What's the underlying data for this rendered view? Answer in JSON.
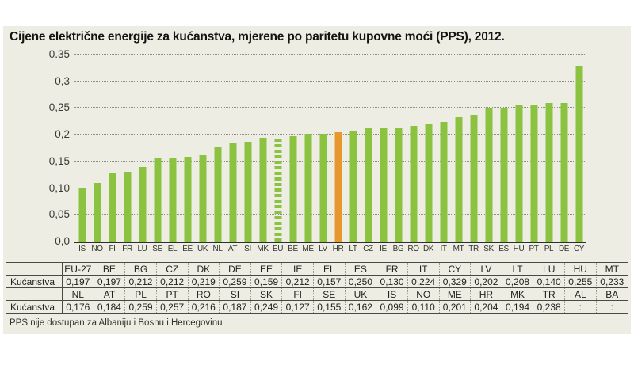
{
  "title": "Cijene električne energije za kućanstva, mjerene po paritetu kupovne moći (PPS), 2012.",
  "footnote": "PPS nije dostupan za Albaniju i Bosnu i Hercegovinu",
  "colors": {
    "panel_background": "#eeede4",
    "bar_green": "#8bc341",
    "bar_orange_highlight": "#e8972c",
    "gridline": "#8f8f85",
    "text": "#1d1d1b"
  },
  "chart_data": {
    "type": "bar",
    "title": "Cijene električne energije za kućanstva, mjerene po paritetu kupovne moći (PPS), 2012.",
    "xlabel": "",
    "ylabel": "",
    "ylim": [
      0,
      0.35
    ],
    "grid": "horizontal-dotted",
    "legend_position": "none",
    "yticks": [
      {
        "value": 0,
        "label": "0,0"
      },
      {
        "value": 0.05,
        "label": "0,05"
      },
      {
        "value": 0.1,
        "label": "0,10"
      },
      {
        "value": 0.15,
        "label": "0,15"
      },
      {
        "value": 0.2,
        "label": "0,2"
      },
      {
        "value": 0.25,
        "label": "0,25"
      },
      {
        "value": 0.3,
        "label": "0,3"
      },
      {
        "value": 0.35,
        "label": "0.35"
      }
    ],
    "bars": [
      {
        "code": "IS",
        "value": 0.099,
        "style": "green"
      },
      {
        "code": "NO",
        "value": 0.11,
        "style": "green"
      },
      {
        "code": "FI",
        "value": 0.127,
        "style": "green"
      },
      {
        "code": "FR",
        "value": 0.13,
        "style": "green"
      },
      {
        "code": "LU",
        "value": 0.14,
        "style": "green"
      },
      {
        "code": "SE",
        "value": 0.155,
        "style": "green"
      },
      {
        "code": "EL",
        "value": 0.157,
        "style": "green"
      },
      {
        "code": "EE",
        "value": 0.159,
        "style": "green"
      },
      {
        "code": "UK",
        "value": 0.162,
        "style": "green"
      },
      {
        "code": "NL",
        "value": 0.176,
        "style": "green"
      },
      {
        "code": "AT",
        "value": 0.184,
        "style": "green"
      },
      {
        "code": "SI",
        "value": 0.187,
        "style": "green"
      },
      {
        "code": "MK",
        "value": 0.194,
        "style": "green"
      },
      {
        "code": "EU",
        "value": 0.197,
        "style": "dashed"
      },
      {
        "code": "BE",
        "value": 0.197,
        "style": "green"
      },
      {
        "code": "ME",
        "value": 0.201,
        "style": "green"
      },
      {
        "code": "LV",
        "value": 0.202,
        "style": "green"
      },
      {
        "code": "HR",
        "value": 0.204,
        "style": "orange"
      },
      {
        "code": "LT",
        "value": 0.208,
        "style": "green"
      },
      {
        "code": "CZ",
        "value": 0.212,
        "style": "green"
      },
      {
        "code": "IE",
        "value": 0.212,
        "style": "green"
      },
      {
        "code": "BG",
        "value": 0.212,
        "style": "green"
      },
      {
        "code": "RO",
        "value": 0.216,
        "style": "green"
      },
      {
        "code": "DK",
        "value": 0.219,
        "style": "green"
      },
      {
        "code": "IT",
        "value": 0.224,
        "style": "green"
      },
      {
        "code": "MT",
        "value": 0.233,
        "style": "green"
      },
      {
        "code": "TR",
        "value": 0.238,
        "style": "green"
      },
      {
        "code": "SK",
        "value": 0.249,
        "style": "green"
      },
      {
        "code": "ES",
        "value": 0.25,
        "style": "green"
      },
      {
        "code": "HU",
        "value": 0.255,
        "style": "green"
      },
      {
        "code": "PT",
        "value": 0.257,
        "style": "green"
      },
      {
        "code": "PL",
        "value": 0.259,
        "style": "green"
      },
      {
        "code": "DE",
        "value": 0.259,
        "style": "green"
      },
      {
        "code": "CY",
        "value": 0.329,
        "style": "green"
      }
    ]
  },
  "table": {
    "row_label": "Kućanstva",
    "missing_symbol": ":",
    "groups": [
      {
        "headers": [
          "EU-27",
          "BE",
          "BG",
          "CZ",
          "DK",
          "DE",
          "EE",
          "IE",
          "EL",
          "ES",
          "FR",
          "IT",
          "CY",
          "LV",
          "LT",
          "LU",
          "HU",
          "MT"
        ],
        "values": [
          "0,197",
          "0,197",
          "0,212",
          "0,212",
          "0,219",
          "0,259",
          "0,159",
          "0,212",
          "0,157",
          "0,250",
          "0,130",
          "0,224",
          "0,329",
          "0,202",
          "0,208",
          "0,140",
          "0,255",
          "0,233"
        ]
      },
      {
        "headers": [
          "NL",
          "AT",
          "PL",
          "PT",
          "RO",
          "SI",
          "SK",
          "FI",
          "SE",
          "UK",
          "IS",
          "NO",
          "ME",
          "HR",
          "MK",
          "TR",
          "AL",
          "BA"
        ],
        "values": [
          "0,176",
          "0,184",
          "0,259",
          "0,257",
          "0,216",
          "0,187",
          "0,249",
          "0,127",
          "0,155",
          "0,162",
          "0,099",
          "0,110",
          "0,201",
          "0,204",
          "0,194",
          "0,238",
          ":",
          ":"
        ]
      }
    ]
  }
}
